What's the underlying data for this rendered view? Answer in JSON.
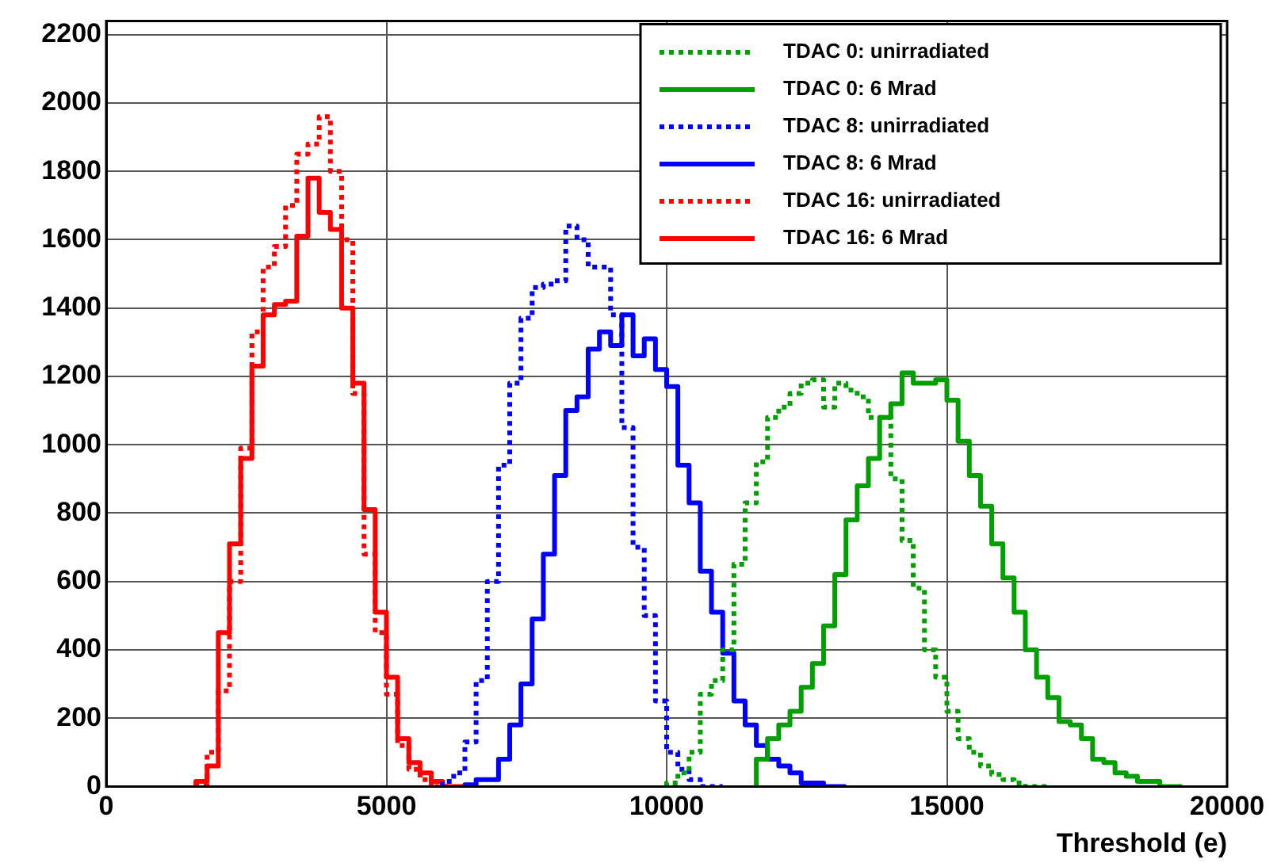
{
  "chart_data": {
    "type": "step",
    "xlabel": "Threshold (e)",
    "series": [
      {
        "name": "TDAC 0: unirradiated",
        "color": "#00a000",
        "line_style": "dotted",
        "x": [
          10000,
          10200,
          10400,
          10600,
          10800,
          11000,
          11200,
          11400,
          11600,
          11800,
          12000,
          12200,
          12400,
          12600,
          12800,
          13000,
          13200,
          13400,
          13600,
          13800,
          14000,
          14200,
          14400,
          14600,
          14800,
          15000,
          15200,
          15400,
          15600,
          15800,
          16000,
          16200,
          16400,
          16600,
          16800
        ],
        "values": [
          0,
          10,
          40,
          100,
          270,
          310,
          400,
          650,
          830,
          950,
          1080,
          1110,
          1150,
          1180,
          1190,
          1110,
          1180,
          1160,
          1140,
          1080,
          1080,
          900,
          720,
          580,
          400,
          320,
          220,
          140,
          100,
          60,
          35,
          20,
          10,
          0,
          0
        ]
      },
      {
        "name": "TDAC 0: 6 Mrad",
        "color": "#00a000",
        "line_style": "solid",
        "x": [
          11600,
          11800,
          12000,
          12200,
          12400,
          12600,
          12800,
          13000,
          13200,
          13400,
          13600,
          13800,
          14000,
          14200,
          14400,
          14600,
          14800,
          15000,
          15200,
          15400,
          15600,
          15800,
          16000,
          16200,
          16400,
          16600,
          16800,
          17000,
          17200,
          17400,
          17600,
          17800,
          18000,
          18200,
          18400,
          18600,
          18800,
          19000,
          19200
        ],
        "values": [
          0,
          80,
          140,
          180,
          220,
          290,
          360,
          470,
          620,
          780,
          880,
          960,
          1080,
          1120,
          1210,
          1180,
          1180,
          1190,
          1130,
          1010,
          910,
          820,
          710,
          610,
          510,
          400,
          320,
          260,
          190,
          180,
          140,
          80,
          70,
          40,
          30,
          15,
          15,
          0,
          0
        ]
      },
      {
        "name": "TDAC 8: unirradiated",
        "color": "#0000ff",
        "line_style": "dotted",
        "x": [
          6000,
          6200,
          6400,
          6600,
          6800,
          7000,
          7200,
          7400,
          7600,
          7800,
          8000,
          8200,
          8400,
          8600,
          8800,
          9000,
          9200,
          9400,
          9600,
          9800,
          10000,
          10200,
          10400,
          10600,
          10800,
          11000
        ],
        "values": [
          0,
          15,
          40,
          130,
          310,
          600,
          940,
          1180,
          1370,
          1460,
          1470,
          1480,
          1640,
          1600,
          1520,
          1520,
          1380,
          1050,
          700,
          500,
          250,
          100,
          50,
          20,
          0,
          0
        ]
      },
      {
        "name": "TDAC 8: 6 Mrad",
        "color": "#0000ff",
        "line_style": "solid",
        "x": [
          6400,
          6600,
          6800,
          7000,
          7200,
          7400,
          7600,
          7800,
          8000,
          8200,
          8400,
          8600,
          8800,
          9000,
          9200,
          9400,
          9600,
          9800,
          10000,
          10200,
          10400,
          10600,
          10800,
          11000,
          11200,
          11400,
          11600,
          11800,
          12000,
          12200,
          12400,
          12600,
          12800,
          13000,
          13200
        ],
        "values": [
          0,
          5,
          20,
          20,
          80,
          180,
          300,
          490,
          680,
          910,
          1100,
          1140,
          1280,
          1330,
          1290,
          1380,
          1260,
          1310,
          1220,
          1170,
          940,
          830,
          630,
          510,
          390,
          250,
          180,
          120,
          80,
          60,
          40,
          10,
          10,
          0,
          0
        ]
      },
      {
        "name": "TDAC 16: unirradiated",
        "color": "#ff0000",
        "line_style": "dotted",
        "x": [
          1600,
          1800,
          2000,
          2200,
          2400,
          2600,
          2800,
          3000,
          3200,
          3400,
          3600,
          3800,
          4000,
          4200,
          4400,
          4600,
          4800,
          5000,
          5200,
          5400,
          5600,
          5800,
          6000,
          6200
        ],
        "values": [
          0,
          5,
          100,
          280,
          600,
          990,
          1330,
          1520,
          1580,
          1700,
          1850,
          1880,
          1960,
          1800,
          1600,
          1150,
          680,
          450,
          270,
          120,
          50,
          20,
          0,
          0
        ]
      },
      {
        "name": "TDAC 16: 6 Mrad",
        "color": "#ff0000",
        "line_style": "solid",
        "x": [
          1600,
          1800,
          2000,
          2200,
          2400,
          2600,
          2800,
          3000,
          3200,
          3400,
          3600,
          3800,
          4000,
          4200,
          4400,
          4600,
          4800,
          5000,
          5200,
          5400,
          5600,
          5800,
          6000,
          6200,
          6400
        ],
        "values": [
          0,
          15,
          60,
          450,
          710,
          960,
          1230,
          1380,
          1410,
          1420,
          1610,
          1780,
          1680,
          1630,
          1400,
          1180,
          810,
          510,
          320,
          140,
          70,
          40,
          15,
          0,
          0
        ]
      }
    ],
    "xlim": [
      0,
      20000
    ],
    "xticks": [
      0,
      5000,
      10000,
      15000,
      20000
    ],
    "ylim": [
      0,
      2240
    ],
    "yticks": [
      0,
      200,
      400,
      600,
      800,
      1000,
      1200,
      1400,
      1600,
      1800,
      2000,
      2200
    ],
    "grid": true,
    "legend": "top right"
  }
}
